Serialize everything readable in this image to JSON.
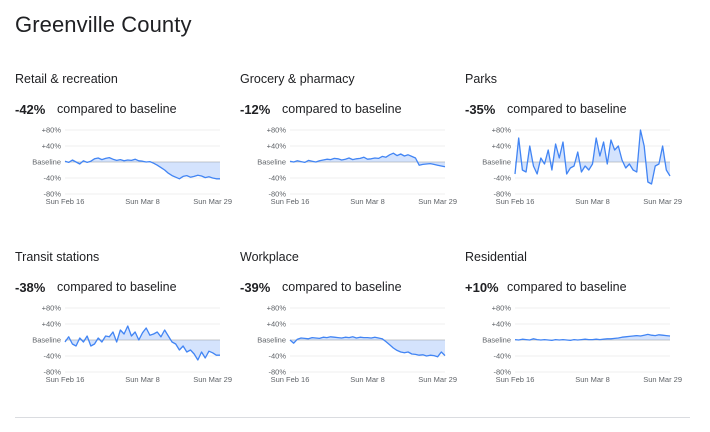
{
  "page": {
    "title": "Greenville County"
  },
  "shared": {
    "compared_label": "compared to baseline",
    "y_ticks": [
      "+80%",
      "+40%",
      "Baseline",
      "-40%",
      "-80%"
    ],
    "x_ticks": [
      "Sun Feb 16",
      "Sun Mar 8",
      "Sun Mar 29"
    ],
    "colors": {
      "line": "#4285f4",
      "fill": "#c6dafc",
      "grid": "#e0e0e0"
    }
  },
  "cards": [
    {
      "category": "Retail & recreation",
      "change": "-42%"
    },
    {
      "category": "Grocery & pharmacy",
      "change": "-12%"
    },
    {
      "category": "Parks",
      "change": "-35%"
    },
    {
      "category": "Transit stations",
      "change": "-38%"
    },
    {
      "category": "Workplace",
      "change": "-39%"
    },
    {
      "category": "Residential",
      "change": "+10%"
    }
  ],
  "chart_data": [
    {
      "type": "line",
      "title": "Retail & recreation",
      "ylim": [
        -80,
        80
      ],
      "x": [
        "Feb 16",
        "Feb 17",
        "Feb 18",
        "Feb 19",
        "Feb 20",
        "Feb 21",
        "Feb 22",
        "Feb 23",
        "Feb 24",
        "Feb 25",
        "Feb 26",
        "Feb 27",
        "Feb 28",
        "Feb 29",
        "Mar 1",
        "Mar 2",
        "Mar 3",
        "Mar 4",
        "Mar 5",
        "Mar 6",
        "Mar 7",
        "Mar 8",
        "Mar 9",
        "Mar 10",
        "Mar 11",
        "Mar 12",
        "Mar 13",
        "Mar 14",
        "Mar 15",
        "Mar 16",
        "Mar 17",
        "Mar 18",
        "Mar 19",
        "Mar 20",
        "Mar 21",
        "Mar 22",
        "Mar 23",
        "Mar 24",
        "Mar 25",
        "Mar 26",
        "Mar 27",
        "Mar 28",
        "Mar 29"
      ],
      "values": [
        2,
        -1,
        5,
        0,
        -5,
        3,
        -1,
        2,
        8,
        10,
        6,
        9,
        11,
        7,
        4,
        6,
        3,
        5,
        4,
        7,
        3,
        2,
        0,
        1,
        -3,
        -8,
        -14,
        -20,
        -28,
        -34,
        -38,
        -42,
        -36,
        -34,
        -38,
        -36,
        -33,
        -35,
        -39,
        -37,
        -40,
        -42,
        -42
      ]
    },
    {
      "type": "line",
      "title": "Grocery & pharmacy",
      "ylim": [
        -80,
        80
      ],
      "x": [
        "Feb 16",
        "Feb 17",
        "Feb 18",
        "Feb 19",
        "Feb 20",
        "Feb 21",
        "Feb 22",
        "Feb 23",
        "Feb 24",
        "Feb 25",
        "Feb 26",
        "Feb 27",
        "Feb 28",
        "Feb 29",
        "Mar 1",
        "Mar 2",
        "Mar 3",
        "Mar 4",
        "Mar 5",
        "Mar 6",
        "Mar 7",
        "Mar 8",
        "Mar 9",
        "Mar 10",
        "Mar 11",
        "Mar 12",
        "Mar 13",
        "Mar 14",
        "Mar 15",
        "Mar 16",
        "Mar 17",
        "Mar 18",
        "Mar 19",
        "Mar 20",
        "Mar 21",
        "Mar 22",
        "Mar 23",
        "Mar 24",
        "Mar 25",
        "Mar 26",
        "Mar 27",
        "Mar 28",
        "Mar 29"
      ],
      "values": [
        2,
        0,
        3,
        1,
        -1,
        4,
        2,
        0,
        3,
        5,
        7,
        6,
        9,
        8,
        5,
        7,
        10,
        6,
        8,
        9,
        12,
        7,
        8,
        10,
        9,
        14,
        12,
        18,
        22,
        16,
        20,
        15,
        18,
        14,
        10,
        -8,
        -6,
        -5,
        -4,
        -6,
        -8,
        -10,
        -12
      ]
    },
    {
      "type": "line",
      "title": "Parks",
      "ylim": [
        -80,
        80
      ],
      "x": [
        "Feb 16",
        "Feb 17",
        "Feb 18",
        "Feb 19",
        "Feb 20",
        "Feb 21",
        "Feb 22",
        "Feb 23",
        "Feb 24",
        "Feb 25",
        "Feb 26",
        "Feb 27",
        "Feb 28",
        "Feb 29",
        "Mar 1",
        "Mar 2",
        "Mar 3",
        "Mar 4",
        "Mar 5",
        "Mar 6",
        "Mar 7",
        "Mar 8",
        "Mar 9",
        "Mar 10",
        "Mar 11",
        "Mar 12",
        "Mar 13",
        "Mar 14",
        "Mar 15",
        "Mar 16",
        "Mar 17",
        "Mar 18",
        "Mar 19",
        "Mar 20",
        "Mar 21",
        "Mar 22",
        "Mar 23",
        "Mar 24",
        "Mar 25",
        "Mar 26",
        "Mar 27",
        "Mar 28",
        "Mar 29"
      ],
      "values": [
        -30,
        60,
        -20,
        -25,
        40,
        -10,
        -30,
        10,
        -5,
        30,
        -20,
        45,
        10,
        50,
        -30,
        -15,
        -10,
        25,
        -25,
        -10,
        -20,
        -5,
        60,
        15,
        50,
        -5,
        55,
        30,
        40,
        5,
        -15,
        -5,
        -20,
        -25,
        80,
        40,
        -50,
        -55,
        -10,
        -5,
        40,
        -20,
        -35
      ]
    },
    {
      "type": "line",
      "title": "Transit stations",
      "ylim": [
        -80,
        80
      ],
      "x": [
        "Feb 16",
        "Feb 17",
        "Feb 18",
        "Feb 19",
        "Feb 20",
        "Feb 21",
        "Feb 22",
        "Feb 23",
        "Feb 24",
        "Feb 25",
        "Feb 26",
        "Feb 27",
        "Feb 28",
        "Feb 29",
        "Mar 1",
        "Mar 2",
        "Mar 3",
        "Mar 4",
        "Mar 5",
        "Mar 6",
        "Mar 7",
        "Mar 8",
        "Mar 9",
        "Mar 10",
        "Mar 11",
        "Mar 12",
        "Mar 13",
        "Mar 14",
        "Mar 15",
        "Mar 16",
        "Mar 17",
        "Mar 18",
        "Mar 19",
        "Mar 20",
        "Mar 21",
        "Mar 22",
        "Mar 23",
        "Mar 24",
        "Mar 25",
        "Mar 26",
        "Mar 27",
        "Mar 28",
        "Mar 29"
      ],
      "values": [
        -5,
        8,
        -10,
        -15,
        5,
        -5,
        10,
        -15,
        -10,
        5,
        -5,
        10,
        8,
        20,
        -5,
        25,
        15,
        35,
        10,
        20,
        0,
        18,
        30,
        12,
        15,
        20,
        8,
        25,
        10,
        -5,
        -10,
        -25,
        -15,
        -30,
        -25,
        -35,
        -50,
        -30,
        -45,
        -28,
        -32,
        -38,
        -38
      ]
    },
    {
      "type": "line",
      "title": "Workplace",
      "ylim": [
        -80,
        80
      ],
      "x": [
        "Feb 16",
        "Feb 17",
        "Feb 18",
        "Feb 19",
        "Feb 20",
        "Feb 21",
        "Feb 22",
        "Feb 23",
        "Feb 24",
        "Feb 25",
        "Feb 26",
        "Feb 27",
        "Feb 28",
        "Feb 29",
        "Mar 1",
        "Mar 2",
        "Mar 3",
        "Mar 4",
        "Mar 5",
        "Mar 6",
        "Mar 7",
        "Mar 8",
        "Mar 9",
        "Mar 10",
        "Mar 11",
        "Mar 12",
        "Mar 13",
        "Mar 14",
        "Mar 15",
        "Mar 16",
        "Mar 17",
        "Mar 18",
        "Mar 19",
        "Mar 20",
        "Mar 21",
        "Mar 22",
        "Mar 23",
        "Mar 24",
        "Mar 25",
        "Mar 26",
        "Mar 27",
        "Mar 28",
        "Mar 29"
      ],
      "values": [
        0,
        -8,
        2,
        5,
        4,
        3,
        6,
        5,
        4,
        7,
        6,
        8,
        7,
        6,
        5,
        7,
        6,
        8,
        5,
        7,
        6,
        6,
        5,
        7,
        5,
        3,
        -4,
        -12,
        -20,
        -26,
        -30,
        -32,
        -30,
        -35,
        -36,
        -38,
        -37,
        -40,
        -38,
        -39,
        -42,
        -30,
        -39
      ]
    },
    {
      "type": "line",
      "title": "Residential",
      "ylim": [
        -80,
        80
      ],
      "x": [
        "Feb 16",
        "Feb 17",
        "Feb 18",
        "Feb 19",
        "Feb 20",
        "Feb 21",
        "Feb 22",
        "Feb 23",
        "Feb 24",
        "Feb 25",
        "Feb 26",
        "Feb 27",
        "Feb 28",
        "Feb 29",
        "Mar 1",
        "Mar 2",
        "Mar 3",
        "Mar 4",
        "Mar 5",
        "Mar 6",
        "Mar 7",
        "Mar 8",
        "Mar 9",
        "Mar 10",
        "Mar 11",
        "Mar 12",
        "Mar 13",
        "Mar 14",
        "Mar 15",
        "Mar 16",
        "Mar 17",
        "Mar 18",
        "Mar 19",
        "Mar 20",
        "Mar 21",
        "Mar 22",
        "Mar 23",
        "Mar 24",
        "Mar 25",
        "Mar 26",
        "Mar 27",
        "Mar 28",
        "Mar 29"
      ],
      "values": [
        1,
        0,
        2,
        1,
        0,
        3,
        1,
        0,
        1,
        0,
        -1,
        1,
        0,
        1,
        0,
        -1,
        1,
        0,
        1,
        2,
        1,
        1,
        2,
        1,
        2,
        3,
        3,
        4,
        5,
        7,
        8,
        9,
        10,
        11,
        10,
        12,
        14,
        12,
        11,
        13,
        12,
        11,
        10
      ]
    }
  ]
}
